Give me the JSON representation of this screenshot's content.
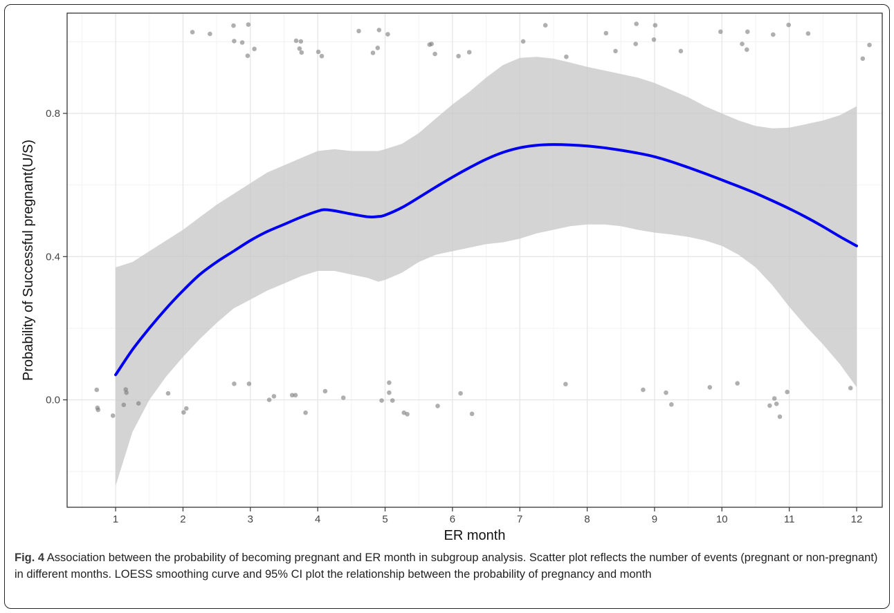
{
  "caption": {
    "label": "Fig. 4",
    "text": "Association between the probability of becoming pregnant and ER month in subgroup analysis. Scatter plot reflects the number of events (pregnant or non-pregnant) in different months. LOESS smoothing curve and 95% CI plot the relationship between the probability of pregnancy and month"
  },
  "colors": {
    "panel": "#ffffff",
    "grid_major": "#e6e6e6",
    "grid_minor": "#f2f2f2",
    "band": "#c8c8c8",
    "line": "#0000ee",
    "points": "#7a7a7a"
  },
  "chart_data": {
    "type": "scatter",
    "title": "",
    "xlabel": "ER month",
    "ylabel": "Probability of Successful pregnant(U/S)",
    "xlim": [
      0.28,
      12.38
    ],
    "ylim": [
      -0.3,
      1.08
    ],
    "x_ticks": [
      1,
      2,
      3,
      4,
      5,
      6,
      7,
      8,
      9,
      10,
      11,
      12
    ],
    "x_tick_labels": [
      "1",
      "2",
      "3",
      "4",
      "5",
      "6",
      "7",
      "8",
      "9",
      "10",
      "11",
      "12"
    ],
    "y_ticks": [
      0.0,
      0.4,
      0.8
    ],
    "y_tick_labels": [
      "0.0",
      "0.4",
      "0.8"
    ],
    "grid": true,
    "legend": "none",
    "series": [
      {
        "kind": "points",
        "x": [
          0.72,
          0.73,
          0.74,
          0.96,
          1.12,
          1.15,
          1.16,
          1.34,
          1.78,
          2.01,
          2.05,
          2.14,
          2.4,
          2.75,
          2.76,
          2.88,
          2.96,
          2.97,
          3.06,
          2.76,
          2.98,
          3.28,
          3.35,
          3.62,
          3.67,
          3.68,
          3.73,
          3.75,
          3.76,
          3.82,
          4.01,
          4.06,
          4.11,
          4.38,
          4.61,
          4.82,
          4.89,
          4.91,
          4.95,
          5.04,
          5.06,
          5.11,
          5.06,
          5.28,
          5.33,
          5.66,
          5.69,
          5.74,
          5.78,
          6.09,
          6.12,
          6.25,
          6.29,
          7.05,
          7.38,
          7.69,
          7.68,
          8.28,
          8.42,
          8.72,
          8.73,
          8.83,
          8.99,
          9.01,
          9.17,
          9.25,
          9.39,
          9.82,
          9.98,
          10.23,
          10.3,
          10.37,
          10.38,
          10.71,
          10.76,
          10.78,
          10.81,
          10.86,
          10.97,
          10.99,
          11.28,
          11.91,
          12.09,
          12.19
        ],
        "y": [
          0.028,
          -0.022,
          -0.028,
          -0.044,
          -0.014,
          0.029,
          0.02,
          -0.01,
          0.018,
          -0.035,
          -0.024,
          1.027,
          1.022,
          1.045,
          1.002,
          0.998,
          0.961,
          1.048,
          0.98,
          0.045,
          0.045,
          0.0,
          0.01,
          0.013,
          0.013,
          1.003,
          0.981,
          1.001,
          0.97,
          -0.036,
          0.972,
          0.96,
          0.024,
          0.006,
          1.03,
          0.969,
          0.983,
          1.033,
          -0.002,
          1.021,
          0.048,
          -0.002,
          0.02,
          -0.036,
          -0.04,
          0.992,
          0.994,
          0.966,
          -0.017,
          0.96,
          0.018,
          0.971,
          -0.039,
          1.001,
          1.046,
          0.958,
          0.044,
          1.024,
          0.974,
          0.994,
          1.05,
          0.028,
          1.006,
          1.046,
          0.02,
          -0.013,
          0.974,
          0.035,
          1.028,
          0.046,
          0.994,
          0.978,
          1.028,
          -0.016,
          1.02,
          0.004,
          -0.011,
          -0.047,
          0.022,
          1.047,
          1.023,
          0.033,
          0.953,
          0.991
        ]
      },
      {
        "kind": "loess",
        "x": [
          1.0,
          1.25,
          1.5,
          1.75,
          2.0,
          2.25,
          2.5,
          2.75,
          3.0,
          3.25,
          3.5,
          3.75,
          4.0,
          4.1,
          4.25,
          4.5,
          4.75,
          4.9,
          5.0,
          5.25,
          5.5,
          5.75,
          6.0,
          6.25,
          6.5,
          6.75,
          7.0,
          7.25,
          7.5,
          7.75,
          8.0,
          8.25,
          8.5,
          8.75,
          9.0,
          9.25,
          9.5,
          9.75,
          10.0,
          10.25,
          10.5,
          10.75,
          11.0,
          11.25,
          11.5,
          11.75,
          12.0
        ],
        "y": [
          0.07,
          0.14,
          0.2,
          0.255,
          0.305,
          0.35,
          0.385,
          0.415,
          0.445,
          0.47,
          0.49,
          0.51,
          0.527,
          0.531,
          0.528,
          0.519,
          0.511,
          0.512,
          0.516,
          0.537,
          0.565,
          0.594,
          0.622,
          0.648,
          0.672,
          0.691,
          0.704,
          0.711,
          0.713,
          0.712,
          0.709,
          0.704,
          0.697,
          0.689,
          0.679,
          0.665,
          0.649,
          0.632,
          0.614,
          0.596,
          0.577,
          0.556,
          0.534,
          0.51,
          0.484,
          0.456,
          0.43
        ]
      },
      {
        "kind": "ci95",
        "x": [
          1.0,
          1.25,
          1.5,
          1.75,
          2.0,
          2.25,
          2.5,
          2.75,
          3.0,
          3.25,
          3.5,
          3.75,
          4.0,
          4.25,
          4.5,
          4.75,
          4.9,
          5.0,
          5.25,
          5.5,
          5.75,
          6.0,
          6.25,
          6.5,
          6.75,
          7.0,
          7.25,
          7.5,
          7.75,
          8.0,
          8.25,
          8.5,
          8.75,
          9.0,
          9.25,
          9.5,
          9.75,
          10.0,
          10.25,
          10.5,
          10.75,
          11.0,
          11.25,
          11.5,
          11.75,
          12.0
        ],
        "lower": [
          -0.24,
          -0.09,
          0.0,
          0.065,
          0.12,
          0.17,
          0.215,
          0.255,
          0.28,
          0.305,
          0.325,
          0.345,
          0.36,
          0.36,
          0.35,
          0.34,
          0.33,
          0.335,
          0.355,
          0.385,
          0.405,
          0.415,
          0.425,
          0.435,
          0.44,
          0.45,
          0.465,
          0.475,
          0.485,
          0.49,
          0.49,
          0.485,
          0.475,
          0.467,
          0.462,
          0.455,
          0.445,
          0.43,
          0.405,
          0.37,
          0.32,
          0.26,
          0.205,
          0.155,
          0.1,
          0.035
        ],
        "upper": [
          0.37,
          0.385,
          0.415,
          0.445,
          0.475,
          0.51,
          0.545,
          0.575,
          0.605,
          0.635,
          0.655,
          0.675,
          0.695,
          0.7,
          0.695,
          0.695,
          0.695,
          0.7,
          0.715,
          0.745,
          0.785,
          0.825,
          0.86,
          0.9,
          0.935,
          0.955,
          0.958,
          0.953,
          0.942,
          0.93,
          0.92,
          0.91,
          0.9,
          0.885,
          0.865,
          0.845,
          0.82,
          0.8,
          0.78,
          0.765,
          0.758,
          0.76,
          0.77,
          0.78,
          0.795,
          0.82
        ]
      }
    ]
  }
}
